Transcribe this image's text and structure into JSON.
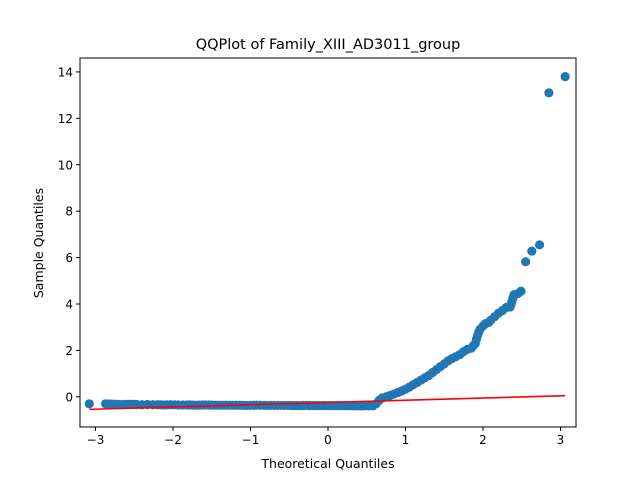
{
  "chart_data": {
    "type": "scatter",
    "title": "QQPlot of Family_XIII_AD3011_group",
    "xlabel": "Theoretical Quantiles",
    "ylabel": "Sample Quantiles",
    "xlim": [
      -3.2,
      3.2
    ],
    "ylim": [
      -1.3,
      14.6
    ],
    "xticks": [
      -3,
      -2,
      -1,
      0,
      1,
      2,
      3
    ],
    "xtick_labels": [
      "−3",
      "−2",
      "−1",
      "0",
      "1",
      "2",
      "3"
    ],
    "yticks": [
      0,
      2,
      4,
      6,
      8,
      10,
      12,
      14
    ],
    "ytick_labels": [
      "0",
      "2",
      "4",
      "6",
      "8",
      "10",
      "12",
      "14"
    ],
    "grid": false,
    "colors": {
      "points": "#1f77b4",
      "line": "#ff0000"
    },
    "series": [
      {
        "kind": "points",
        "x": [
          -3.08,
          -2.87,
          -2.75,
          -2.65,
          -2.55,
          -2.47,
          -2.4,
          -2.33,
          -2.26,
          -2.2,
          -2.12,
          -2.03,
          -1.93,
          -1.82,
          -1.7,
          -1.58,
          -1.45,
          -1.32,
          -1.18,
          -1.05,
          -0.92,
          -0.78,
          -0.65,
          -0.52,
          -0.4,
          -0.28,
          -0.15,
          -0.03,
          0.1,
          0.22,
          0.35,
          0.47,
          0.58,
          0.62,
          0.66,
          0.7,
          0.75,
          0.8,
          0.85,
          0.9,
          0.95,
          1.0,
          1.05,
          1.1,
          1.15,
          1.2,
          1.25,
          1.3,
          1.35,
          1.4,
          1.45,
          1.5,
          1.55,
          1.6,
          1.65,
          1.7,
          1.75,
          1.8,
          1.85,
          1.9,
          1.93,
          1.96,
          2.0,
          2.03,
          2.07,
          2.1,
          2.15,
          2.2,
          2.25,
          2.3,
          2.35,
          2.4,
          2.45,
          2.49,
          2.55,
          2.63,
          2.73,
          2.85,
          3.06
        ],
        "y": [
          -0.3,
          -0.3,
          -0.32,
          -0.33,
          -0.32,
          -0.33,
          -0.34,
          -0.33,
          -0.34,
          -0.34,
          -0.35,
          -0.34,
          -0.35,
          -0.35,
          -0.36,
          -0.35,
          -0.36,
          -0.36,
          -0.36,
          -0.37,
          -0.36,
          -0.37,
          -0.37,
          -0.37,
          -0.38,
          -0.37,
          -0.38,
          -0.38,
          -0.38,
          -0.38,
          -0.39,
          -0.39,
          -0.39,
          -0.3,
          -0.15,
          -0.05,
          0.0,
          0.06,
          0.12,
          0.18,
          0.25,
          0.33,
          0.42,
          0.52,
          0.62,
          0.72,
          0.82,
          0.92,
          1.05,
          1.17,
          1.3,
          1.42,
          1.55,
          1.65,
          1.73,
          1.82,
          1.95,
          2.05,
          2.1,
          2.3,
          2.65,
          2.9,
          3.05,
          3.15,
          3.2,
          3.3,
          3.45,
          3.6,
          3.72,
          3.85,
          3.87,
          4.4,
          4.45,
          4.55,
          5.82,
          6.28,
          6.55,
          13.1,
          13.8
        ]
      },
      {
        "kind": "line",
        "x": [
          -3.08,
          3.06
        ],
        "y": [
          -0.54,
          0.05
        ]
      }
    ]
  }
}
